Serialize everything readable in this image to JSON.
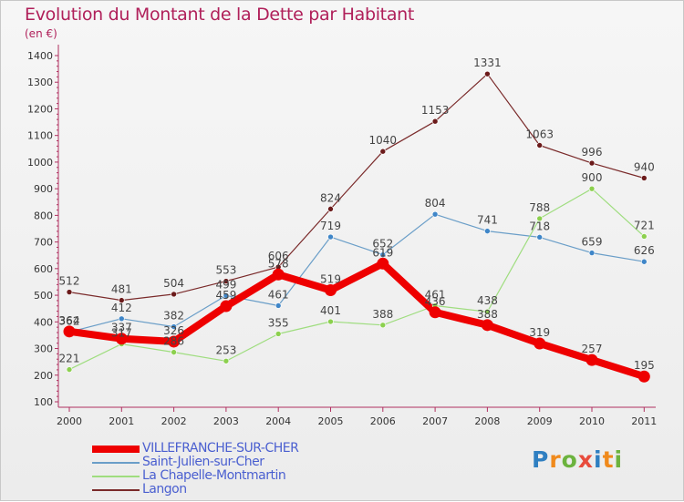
{
  "header": {
    "title": "Evolution du Montant de la Dette par Habitant",
    "subtitle": "(en €)"
  },
  "logo": {
    "text": "Proxiti",
    "colors": [
      "#2f7fc1",
      "#f08a1c",
      "#6cb33e",
      "#e84b3c",
      "#2f7fc1",
      "#f08a1c",
      "#6cb33e"
    ]
  },
  "chart_data": {
    "type": "line",
    "title": "Evolution du Montant de la Dette par Habitant",
    "subtitle": "(en €)",
    "x": [
      "2000",
      "2001",
      "2002",
      "2003",
      "2004",
      "2005",
      "2006",
      "2007",
      "2008",
      "2009",
      "2010",
      "2011"
    ],
    "ylim": [
      100,
      1400
    ],
    "yticks": [
      100,
      200,
      300,
      400,
      500,
      600,
      700,
      800,
      900,
      1000,
      1100,
      1200,
      1300,
      1400
    ],
    "grid": false,
    "legend_position": "bottom-left",
    "series": [
      {
        "name": "Langon",
        "color": "#7a2a2a",
        "marker": "#6b1a1a",
        "values": [
          512,
          481,
          504,
          553,
          606,
          824,
          1040,
          1153,
          1331,
          1063,
          996,
          940
        ]
      },
      {
        "name": "Saint-Julien-sur-Cher",
        "color": "#6a9ec8",
        "marker": "#3f86c8",
        "values": [
          362,
          412,
          382,
          499,
          461,
          719,
          652,
          804,
          741,
          718,
          659,
          626
        ]
      },
      {
        "name": "La Chapelle-Montmartin",
        "color": "#9fdd7f",
        "marker": "#8cd04e",
        "values": [
          221,
          317,
          286,
          253,
          355,
          401,
          388,
          461,
          438,
          788,
          900,
          721
        ]
      },
      {
        "name": "VILLEFRANCHE-SUR-CHER",
        "color": "#ee0000",
        "marker": "#ee0000",
        "thick": true,
        "values": [
          364,
          337,
          326,
          459,
          578,
          519,
          619,
          436,
          388,
          319,
          257,
          195
        ]
      }
    ],
    "legend_order": [
      "VILLEFRANCHE-SUR-CHER",
      "Saint-Julien-sur-Cher",
      "La Chapelle-Montmartin",
      "Langon"
    ]
  }
}
